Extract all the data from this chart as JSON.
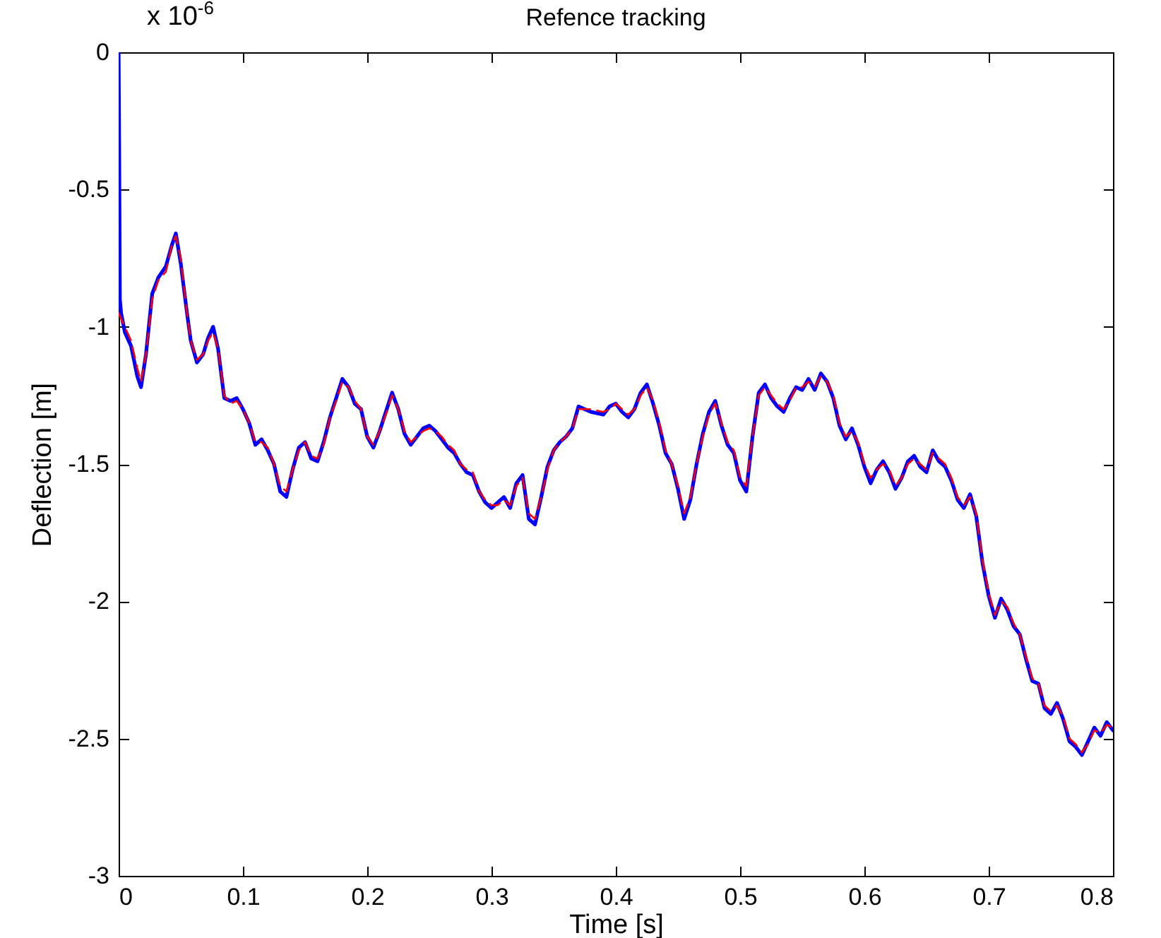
{
  "chart_data": {
    "type": "line",
    "title": "Refence tracking",
    "xlabel": "Time [s]",
    "ylabel": "Deflection [m]",
    "annotations": [
      "x 10$^{-6}$"
    ],
    "xlim": [
      0,
      0.8
    ],
    "xticks": [
      0,
      0.1,
      0.2,
      0.3,
      0.4,
      0.5,
      0.6,
      0.7,
      0.8
    ],
    "ylim": [
      -3,
      0
    ],
    "yticks": [
      -3,
      -2.5,
      -2,
      -1.5,
      -1,
      -0.5,
      0
    ],
    "grid": false,
    "marker": "none",
    "x": [
      0,
      0.005,
      0.01,
      0.015,
      0.018,
      0.022,
      0.027,
      0.032,
      0.038,
      0.043,
      0.046,
      0.05,
      0.055,
      0.058,
      0.063,
      0.068,
      0.072,
      0.076,
      0.08,
      0.085,
      0.09,
      0.095,
      0.1,
      0.105,
      0.11,
      0.115,
      0.12,
      0.125,
      0.13,
      0.135,
      0.14,
      0.145,
      0.15,
      0.155,
      0.16,
      0.165,
      0.17,
      0.175,
      0.18,
      0.185,
      0.19,
      0.195,
      0.2,
      0.205,
      0.21,
      0.215,
      0.22,
      0.225,
      0.23,
      0.235,
      0.24,
      0.245,
      0.25,
      0.255,
      0.26,
      0.265,
      0.27,
      0.275,
      0.28,
      0.285,
      0.29,
      0.295,
      0.3,
      0.305,
      0.31,
      0.315,
      0.32,
      0.325,
      0.33,
      0.335,
      0.34,
      0.345,
      0.35,
      0.355,
      0.36,
      0.365,
      0.37,
      0.375,
      0.38,
      0.39,
      0.395,
      0.4,
      0.405,
      0.41,
      0.415,
      0.42,
      0.425,
      0.43,
      0.435,
      0.44,
      0.445,
      0.45,
      0.455,
      0.46,
      0.465,
      0.47,
      0.475,
      0.48,
      0.485,
      0.49,
      0.495,
      0.5,
      0.505,
      0.51,
      0.515,
      0.52,
      0.525,
      0.53,
      0.535,
      0.54,
      0.545,
      0.55,
      0.555,
      0.56,
      0.565,
      0.57,
      0.575,
      0.58,
      0.585,
      0.59,
      0.595,
      0.6,
      0.605,
      0.61,
      0.615,
      0.62,
      0.625,
      0.63,
      0.635,
      0.64,
      0.645,
      0.65,
      0.655,
      0.66,
      0.665,
      0.67,
      0.675,
      0.68,
      0.685,
      0.69,
      0.695,
      0.7,
      0.705,
      0.71,
      0.715,
      0.72,
      0.725,
      0.73,
      0.735,
      0.74,
      0.745,
      0.75,
      0.755,
      0.76,
      0.765,
      0.77,
      0.775,
      0.78,
      0.785,
      0.79,
      0.795,
      0.8
    ],
    "series": [
      {
        "color": "#0000ff",
        "line_style": "solid",
        "x": [
          0,
          0.0005,
          0.001,
          0.002,
          0.005,
          0.01,
          0.015,
          0.018,
          0.022,
          0.027,
          0.032,
          0.038,
          0.043,
          0.046,
          0.05,
          0.055,
          0.058,
          0.063,
          0.068,
          0.072,
          0.076,
          0.08,
          0.085,
          0.09,
          0.095,
          0.1,
          0.105,
          0.11,
          0.115,
          0.12,
          0.125,
          0.13,
          0.135,
          0.14,
          0.145,
          0.15,
          0.155,
          0.16,
          0.165,
          0.17,
          0.175,
          0.18,
          0.185,
          0.19,
          0.195,
          0.2,
          0.205,
          0.21,
          0.215,
          0.22,
          0.225,
          0.23,
          0.235,
          0.24,
          0.245,
          0.25,
          0.255,
          0.26,
          0.265,
          0.27,
          0.275,
          0.28,
          0.285,
          0.29,
          0.295,
          0.3,
          0.305,
          0.31,
          0.315,
          0.32,
          0.325,
          0.33,
          0.335,
          0.34,
          0.345,
          0.35,
          0.355,
          0.36,
          0.365,
          0.37,
          0.375,
          0.38,
          0.39,
          0.395,
          0.4,
          0.405,
          0.41,
          0.415,
          0.42,
          0.425,
          0.43,
          0.435,
          0.44,
          0.445,
          0.45,
          0.455,
          0.46,
          0.465,
          0.47,
          0.475,
          0.48,
          0.485,
          0.49,
          0.495,
          0.5,
          0.505,
          0.51,
          0.515,
          0.52,
          0.525,
          0.53,
          0.535,
          0.54,
          0.545,
          0.55,
          0.555,
          0.56,
          0.565,
          0.57,
          0.575,
          0.58,
          0.585,
          0.59,
          0.595,
          0.6,
          0.605,
          0.61,
          0.615,
          0.62,
          0.625,
          0.63,
          0.635,
          0.64,
          0.645,
          0.65,
          0.655,
          0.66,
          0.665,
          0.67,
          0.675,
          0.68,
          0.685,
          0.69,
          0.695,
          0.7,
          0.705,
          0.71,
          0.715,
          0.72,
          0.725,
          0.73,
          0.735,
          0.74,
          0.745,
          0.75,
          0.755,
          0.76,
          0.765,
          0.77,
          0.775,
          0.78,
          0.785,
          0.79,
          0.795,
          0.8
        ],
        "values": [
          0,
          -0.4,
          -0.9,
          -0.95,
          -1.02,
          -1.07,
          -1.18,
          -1.22,
          -1.1,
          -0.88,
          -0.82,
          -0.78,
          -0.7,
          -0.66,
          -0.77,
          -0.95,
          -1.05,
          -1.13,
          -1.1,
          -1.04,
          -1.0,
          -1.08,
          -1.26,
          -1.27,
          -1.26,
          -1.3,
          -1.35,
          -1.43,
          -1.41,
          -1.45,
          -1.5,
          -1.6,
          -1.62,
          -1.52,
          -1.44,
          -1.42,
          -1.48,
          -1.49,
          -1.42,
          -1.33,
          -1.26,
          -1.19,
          -1.22,
          -1.28,
          -1.3,
          -1.4,
          -1.44,
          -1.38,
          -1.31,
          -1.24,
          -1.3,
          -1.39,
          -1.43,
          -1.4,
          -1.37,
          -1.36,
          -1.38,
          -1.41,
          -1.44,
          -1.46,
          -1.5,
          -1.53,
          -1.54,
          -1.6,
          -1.64,
          -1.66,
          -1.64,
          -1.62,
          -1.66,
          -1.57,
          -1.54,
          -1.7,
          -1.72,
          -1.62,
          -1.51,
          -1.45,
          -1.42,
          -1.4,
          -1.37,
          -1.29,
          -1.3,
          -1.31,
          -1.32,
          -1.29,
          -1.28,
          -1.31,
          -1.33,
          -1.3,
          -1.24,
          -1.21,
          -1.28,
          -1.36,
          -1.46,
          -1.5,
          -1.59,
          -1.7,
          -1.63,
          -1.5,
          -1.39,
          -1.31,
          -1.27,
          -1.36,
          -1.43,
          -1.46,
          -1.56,
          -1.6,
          -1.4,
          -1.24,
          -1.21,
          -1.26,
          -1.29,
          -1.31,
          -1.26,
          -1.22,
          -1.23,
          -1.19,
          -1.23,
          -1.17,
          -1.2,
          -1.26,
          -1.36,
          -1.41,
          -1.37,
          -1.43,
          -1.51,
          -1.57,
          -1.52,
          -1.49,
          -1.53,
          -1.59,
          -1.55,
          -1.49,
          -1.47,
          -1.51,
          -1.53,
          -1.45,
          -1.49,
          -1.51,
          -1.56,
          -1.63,
          -1.66,
          -1.61,
          -1.69,
          -1.86,
          -1.98,
          -2.06,
          -1.99,
          -2.03,
          -2.09,
          -2.12,
          -2.21,
          -2.29,
          -2.3,
          -2.39,
          -2.41,
          -2.37,
          -2.43,
          -2.51,
          -2.53,
          -2.56,
          -2.51,
          -2.46,
          -2.49,
          -2.44,
          -2.47
        ]
      },
      {
        "color": "#ff0000",
        "line_style": "dashed",
        "values": [
          -0.95,
          -1.0,
          -1.05,
          -1.15,
          -1.2,
          -1.1,
          -0.9,
          -0.83,
          -0.8,
          -0.7,
          -0.67,
          -0.75,
          -0.95,
          -1.05,
          -1.12,
          -1.1,
          -1.05,
          -1.02,
          -1.08,
          -1.25,
          -1.28,
          -1.27,
          -1.3,
          -1.35,
          -1.42,
          -1.42,
          -1.44,
          -1.5,
          -1.58,
          -1.6,
          -1.52,
          -1.45,
          -1.42,
          -1.47,
          -1.48,
          -1.43,
          -1.33,
          -1.27,
          -1.2,
          -1.22,
          -1.27,
          -1.3,
          -1.4,
          -1.43,
          -1.38,
          -1.32,
          -1.25,
          -1.3,
          -1.38,
          -1.42,
          -1.4,
          -1.38,
          -1.37,
          -1.38,
          -1.4,
          -1.43,
          -1.45,
          -1.5,
          -1.52,
          -1.53,
          -1.6,
          -1.63,
          -1.65,
          -1.65,
          -1.63,
          -1.65,
          -1.58,
          -1.55,
          -1.68,
          -1.7,
          -1.62,
          -1.52,
          -1.45,
          -1.42,
          -1.4,
          -1.37,
          -1.3,
          -1.3,
          -1.3,
          -1.31,
          -1.3,
          -1.28,
          -1.3,
          -1.32,
          -1.3,
          -1.25,
          -1.22,
          -1.27,
          -1.35,
          -1.45,
          -1.5,
          -1.58,
          -1.68,
          -1.62,
          -1.5,
          -1.4,
          -1.32,
          -1.28,
          -1.35,
          -1.42,
          -1.45,
          -1.55,
          -1.58,
          -1.4,
          -1.25,
          -1.22,
          -1.25,
          -1.28,
          -1.3,
          -1.27,
          -1.22,
          -1.22,
          -1.2,
          -1.22,
          -1.18,
          -1.2,
          -1.25,
          -1.35,
          -1.4,
          -1.38,
          -1.42,
          -1.5,
          -1.55,
          -1.52,
          -1.5,
          -1.52,
          -1.58,
          -1.55,
          -1.5,
          -1.48,
          -1.5,
          -1.52,
          -1.46,
          -1.48,
          -1.5,
          -1.55,
          -1.62,
          -1.65,
          -1.62,
          -1.68,
          -1.85,
          -1.97,
          -2.05,
          -2.0,
          -2.02,
          -2.08,
          -2.12,
          -2.2,
          -2.28,
          -2.3,
          -2.38,
          -2.4,
          -2.38,
          -2.42,
          -2.5,
          -2.52,
          -2.55,
          -2.52,
          -2.47,
          -2.48,
          -2.45,
          -2.46
        ]
      }
    ]
  }
}
